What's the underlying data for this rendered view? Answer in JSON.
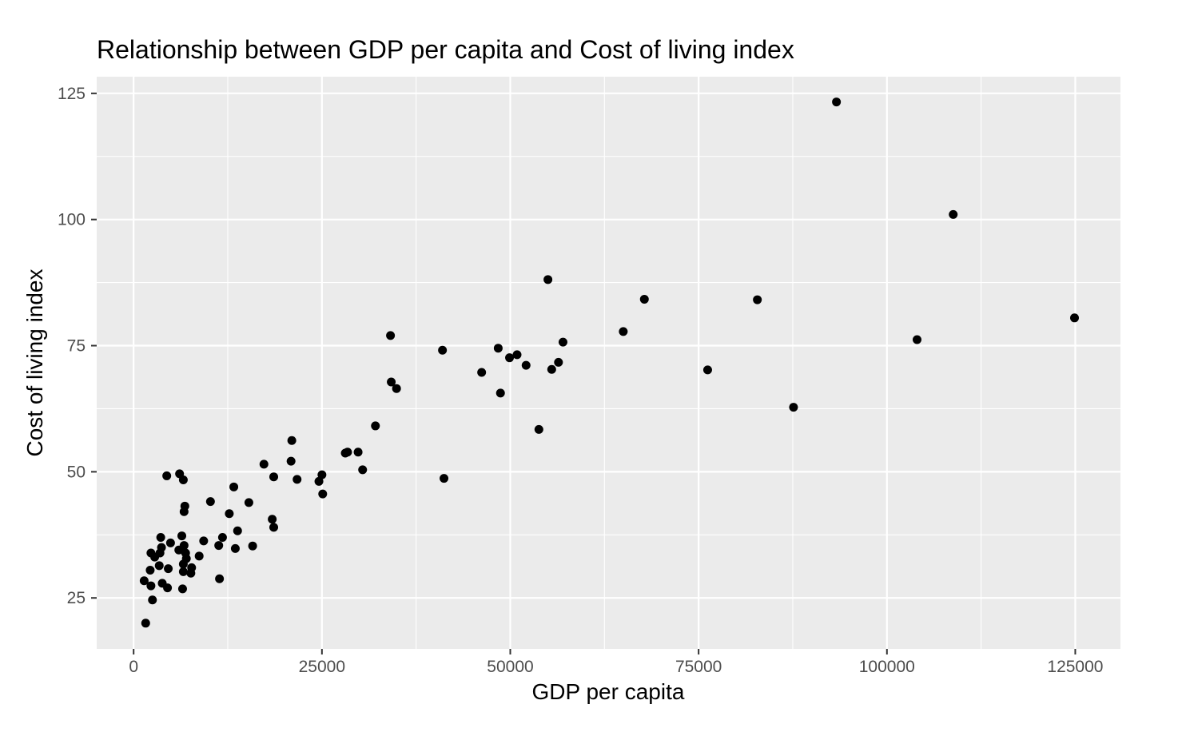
{
  "chart_data": {
    "type": "scatter",
    "title": "Relationship between GDP per capita and Cost of living index",
    "xlabel": "GDP per capita",
    "ylabel": "Cost of living index",
    "xlim": [
      -4900,
      131000
    ],
    "ylim": [
      14.9,
      128.3
    ],
    "x_ticks": [
      0,
      25000,
      50000,
      75000,
      100000,
      125000
    ],
    "x_tick_labels": [
      "0",
      "25000",
      "50000",
      "75000",
      "100000",
      "125000"
    ],
    "y_ticks": [
      25,
      50,
      75,
      100,
      125
    ],
    "y_tick_labels": [
      "25",
      "50",
      "75",
      "100",
      "125"
    ],
    "grid": true,
    "colors": {
      "panel_background": "#ebebeb",
      "grid_major": "#ffffff",
      "point": "#000000",
      "tick_text": "#4d4d4d",
      "tick_mark": "#333333"
    },
    "points": [
      [
        93300,
        123.3
      ],
      [
        108800,
        101.0
      ],
      [
        124900,
        80.5
      ],
      [
        104000,
        76.2
      ],
      [
        82800,
        84.1
      ],
      [
        67800,
        84.2
      ],
      [
        87600,
        62.8
      ],
      [
        76200,
        70.2
      ],
      [
        65000,
        77.8
      ],
      [
        55000,
        88.1
      ],
      [
        57000,
        75.7
      ],
      [
        56400,
        71.7
      ],
      [
        55500,
        70.3
      ],
      [
        53800,
        58.4
      ],
      [
        52100,
        71.1
      ],
      [
        50900,
        73.2
      ],
      [
        49900,
        72.6
      ],
      [
        48400,
        74.5
      ],
      [
        48700,
        65.6
      ],
      [
        46200,
        69.7
      ],
      [
        41000,
        74.1
      ],
      [
        41200,
        48.7
      ],
      [
        34100,
        77.0
      ],
      [
        34200,
        67.8
      ],
      [
        34900,
        66.5
      ],
      [
        32100,
        59.1
      ],
      [
        30400,
        50.4
      ],
      [
        29800,
        53.9
      ],
      [
        28400,
        53.9
      ],
      [
        28100,
        53.7
      ],
      [
        25000,
        49.4
      ],
      [
        25100,
        45.6
      ],
      [
        24600,
        48.1
      ],
      [
        21700,
        48.5
      ],
      [
        20900,
        52.1
      ],
      [
        21000,
        56.2
      ],
      [
        18600,
        49.0
      ],
      [
        18400,
        40.6
      ],
      [
        18600,
        39.0
      ],
      [
        17300,
        51.5
      ],
      [
        15800,
        35.3
      ],
      [
        15300,
        43.9
      ],
      [
        13800,
        38.3
      ],
      [
        13500,
        34.8
      ],
      [
        13300,
        47.0
      ],
      [
        12700,
        41.7
      ],
      [
        11800,
        37.0
      ],
      [
        11300,
        35.4
      ],
      [
        11400,
        28.8
      ],
      [
        10200,
        44.1
      ],
      [
        9300,
        36.3
      ],
      [
        8700,
        33.3
      ],
      [
        7700,
        31.0
      ],
      [
        7600,
        29.9
      ],
      [
        7000,
        32.8
      ],
      [
        6900,
        33.9
      ],
      [
        6800,
        43.2
      ],
      [
        6700,
        42.1
      ],
      [
        6600,
        48.4
      ],
      [
        6100,
        49.6
      ],
      [
        6700,
        35.4
      ],
      [
        6400,
        37.3
      ],
      [
        6600,
        31.7
      ],
      [
        6600,
        30.2
      ],
      [
        6500,
        26.8
      ],
      [
        6000,
        34.5
      ],
      [
        4900,
        35.9
      ],
      [
        4600,
        30.8
      ],
      [
        4400,
        49.2
      ],
      [
        4500,
        27.0
      ],
      [
        3800,
        27.9
      ],
      [
        3600,
        37.0
      ],
      [
        3700,
        35.0
      ],
      [
        3500,
        33.9
      ],
      [
        3400,
        31.4
      ],
      [
        2800,
        33.1
      ],
      [
        2300,
        33.9
      ],
      [
        2200,
        30.5
      ],
      [
        2300,
        27.4
      ],
      [
        2500,
        24.6
      ],
      [
        1400,
        28.4
      ],
      [
        1600,
        20.0
      ]
    ]
  }
}
